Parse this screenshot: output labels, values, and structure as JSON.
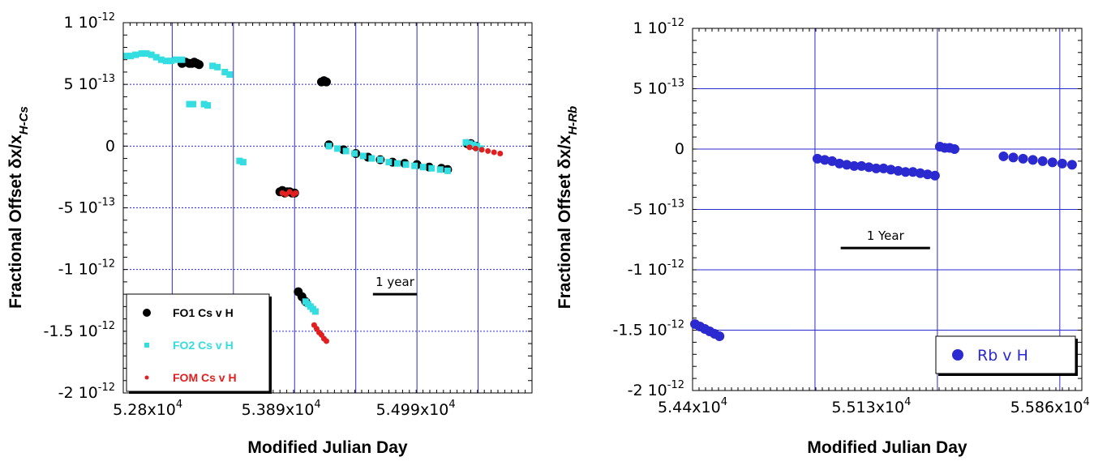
{
  "chart_data": [
    {
      "type": "scatter",
      "xlabel": "Modified Julian Day",
      "ylabel_main": "Fractional Offset δx/x",
      "ylabel_sub": "H-Cs",
      "xlim": [
        52600,
        55940
      ],
      "ylim": [
        -2e-12,
        1e-12
      ],
      "x_tick_labels": [
        {
          "value": 52800,
          "label": "5.28x10",
          "exp": "4"
        },
        {
          "value": 53890,
          "label": "5.389x10",
          "exp": "4"
        },
        {
          "value": 54990,
          "label": "5.499x10",
          "exp": "4"
        }
      ],
      "x_gridlines": [
        53000,
        53500,
        54000,
        54500,
        55000,
        55500
      ],
      "y_tick_labels": [
        {
          "value": 1e-12,
          "label": "1 10",
          "exp": "-12"
        },
        {
          "value": 5e-13,
          "label": "5 10",
          "exp": "-13"
        },
        {
          "value": 0,
          "label": "0",
          "exp": ""
        },
        {
          "value": -5e-13,
          "label": "-5 10",
          "exp": "-13"
        },
        {
          "value": -1e-12,
          "label": "-1 10",
          "exp": "-12"
        },
        {
          "value": -1.5e-12,
          "label": "-1.5 10",
          "exp": "-12"
        },
        {
          "value": -2e-12,
          "label": "-2 10",
          "exp": "-12"
        }
      ],
      "grid": true,
      "legend_position": "bottom-left",
      "annotation": {
        "text": "1 year",
        "x_start": 54640,
        "x_end": 55000,
        "y": -1.2e-12
      },
      "series": [
        {
          "name": "FO1 Cs v H",
          "color": "#000000",
          "marker": "circle",
          "segments": [
            {
              "x": [
                53080,
                53110,
                53140,
                53160,
                53180,
                53200,
                53220
              ],
              "y": [
                6.7e-13,
                6.8e-13,
                6.7e-13,
                6.7e-13,
                6.8e-13,
                6.7e-13,
                6.6e-13
              ]
            },
            {
              "x": [
                53880,
                53900,
                53920,
                53940,
                53960,
                53980,
                54000
              ],
              "y": [
                -3.7e-13,
                -3.6e-13,
                -3.8e-13,
                -3.7e-13,
                -3.7e-13,
                -3.8e-13,
                -3.8e-13
              ]
            },
            {
              "x": [
                54030,
                54060,
                54090
              ],
              "y": [
                -1.18e-12,
                -1.22e-12,
                -1.26e-12
              ]
            },
            {
              "x": [
                54220,
                54240,
                54260
              ],
              "y": [
                5.2e-13,
                5.3e-13,
                5.2e-13
              ]
            },
            {
              "x": [
                54280,
                54400,
                54500,
                54600,
                54700,
                54800,
                54900,
                55000,
                55100,
                55200,
                55250
              ],
              "y": [
                1e-14,
                -3e-14,
                -6e-14,
                -9e-14,
                -1.1e-13,
                -1.3e-13,
                -1.4e-13,
                -1.5e-13,
                -1.7e-13,
                -1.8e-13,
                -1.9e-13
              ]
            },
            {
              "x": [
                55410,
                55440,
                55480
              ],
              "y": [
                2e-14,
                2e-14,
                0.0
              ]
            }
          ]
        },
        {
          "name": "FO2 Cs v H",
          "color": "#33dde0",
          "marker": "square",
          "segments": [
            {
              "x": [
                52630,
                52660,
                52700,
                52750,
                52790,
                52830,
                52870,
                52910,
                52950,
                52990,
                53030,
                53080
              ],
              "y": [
                7.3e-13,
                7.3e-13,
                7.4e-13,
                7.5e-13,
                7.5e-13,
                7.4e-13,
                7.2e-13,
                7e-13,
                6.9e-13,
                6.9e-13,
                7e-13,
                7e-13
              ]
            },
            {
              "x": [
                53140,
                53170,
                53260,
                53290,
                53330,
                53370,
                53430,
                53470,
                53550,
                53580
              ],
              "y": [
                3.4e-13,
                3.4e-13,
                3.4e-13,
                3.3e-13,
                6.5e-13,
                6.4e-13,
                6e-13,
                5.8e-13,
                -1.2e-13,
                -1.3e-13
              ]
            },
            {
              "x": [
                54090,
                54110,
                54130,
                54150,
                54170
              ],
              "y": [
                -1.26e-12,
                -1.28e-12,
                -1.3e-12,
                -1.32e-12,
                -1.34e-12
              ]
            },
            {
              "x": [
                54280,
                54350,
                54420,
                54490,
                54560,
                54630,
                54700,
                54770,
                54840,
                54910,
                54980,
                55050,
                55120,
                55190,
                55250
              ],
              "y": [
                0.0,
                -2e-14,
                -4e-14,
                -6e-14,
                -8e-14,
                -1e-13,
                -1.1e-13,
                -1.3e-13,
                -1.4e-13,
                -1.5e-13,
                -1.6e-13,
                -1.7e-13,
                -1.8e-13,
                -1.9e-13,
                -2e-13
              ]
            },
            {
              "x": [
                55400,
                55430,
                55460,
                55490,
                55520
              ],
              "y": [
                3e-14,
                2e-14,
                1e-14,
                0.0,
                -2e-14
              ]
            }
          ]
        },
        {
          "name": "FOM Cs v H",
          "color": "#e02020",
          "marker": "dot",
          "segments": [
            {
              "x": [
                53900,
                53930,
                53960,
                53990,
                54010
              ],
              "y": [
                -3.8e-13,
                -3.9e-13,
                -3.7e-13,
                -3.9e-13,
                -3.8e-13
              ]
            },
            {
              "x": [
                54160,
                54180,
                54200,
                54220,
                54240,
                54260
              ],
              "y": [
                -1.45e-12,
                -1.48e-12,
                -1.51e-12,
                -1.53e-12,
                -1.56e-12,
                -1.58e-12
              ]
            },
            {
              "x": [
                55430,
                55480,
                55530,
                55580,
                55630,
                55680
              ],
              "y": [
                -1e-14,
                -2e-14,
                -3e-14,
                -4e-14,
                -5e-14,
                -6e-14
              ]
            }
          ]
        }
      ]
    },
    {
      "type": "scatter",
      "xlabel": "Modified Julian Day",
      "ylabel_main": "Fractional Offset δx/x",
      "ylabel_sub": "H-Rb",
      "xlim": [
        54400,
        55990
      ],
      "ylim": [
        -2e-12,
        1e-12
      ],
      "x_tick_labels": [
        {
          "value": 54400,
          "label": "5.44x10",
          "exp": "4"
        },
        {
          "value": 55130,
          "label": "5.513x10",
          "exp": "4"
        },
        {
          "value": 55860,
          "label": "5.586x10",
          "exp": "4"
        }
      ],
      "x_gridlines": [
        54400,
        54900,
        55400,
        55900
      ],
      "y_tick_labels": [
        {
          "value": 1e-12,
          "label": "1 10",
          "exp": "-12"
        },
        {
          "value": 5e-13,
          "label": "5 10",
          "exp": "-13"
        },
        {
          "value": 0,
          "label": "0",
          "exp": ""
        },
        {
          "value": -5e-13,
          "label": "-5 10",
          "exp": "-13"
        },
        {
          "value": -1e-12,
          "label": "-1 10",
          "exp": "-12"
        },
        {
          "value": -1.5e-12,
          "label": "-1.5 10",
          "exp": "-12"
        },
        {
          "value": -2e-12,
          "label": "-2 10",
          "exp": "-12"
        }
      ],
      "grid": true,
      "legend_position": "bottom-right",
      "annotation": {
        "text": "1 Year",
        "x_start": 55005,
        "x_end": 55370,
        "y": -8.2e-13
      },
      "series": [
        {
          "name": "Rb v H",
          "color": "#2a2ad0",
          "marker": "circle",
          "segments": [
            {
              "x": [
                54410,
                54430,
                54450,
                54470,
                54490,
                54510
              ],
              "y": [
                -1.45e-12,
                -1.47e-12,
                -1.49e-12,
                -1.51e-12,
                -1.53e-12,
                -1.55e-12
              ]
            },
            {
              "x": [
                54910,
                54940,
                54970,
                55000,
                55030,
                55060,
                55090,
                55120,
                55150,
                55180,
                55210,
                55240,
                55270,
                55300,
                55330,
                55360,
                55390
              ],
              "y": [
                -8e-14,
                -9e-14,
                -1e-13,
                -1.2e-13,
                -1.3e-13,
                -1.4e-13,
                -1.4e-13,
                -1.5e-13,
                -1.6e-13,
                -1.6e-13,
                -1.7e-13,
                -1.8e-13,
                -1.9e-13,
                -1.9e-13,
                -2e-13,
                -2.1e-13,
                -2.2e-13
              ]
            },
            {
              "x": [
                55410,
                55430,
                55450,
                55470
              ],
              "y": [
                2e-14,
                1e-14,
                1e-14,
                0.0
              ]
            },
            {
              "x": [
                55670,
                55710,
                55750,
                55790,
                55830,
                55870,
                55910,
                55950
              ],
              "y": [
                -6e-14,
                -7e-14,
                -8e-14,
                -9e-14,
                -1e-13,
                -1.1e-13,
                -1.2e-13,
                -1.3e-13
              ]
            }
          ]
        }
      ]
    }
  ]
}
